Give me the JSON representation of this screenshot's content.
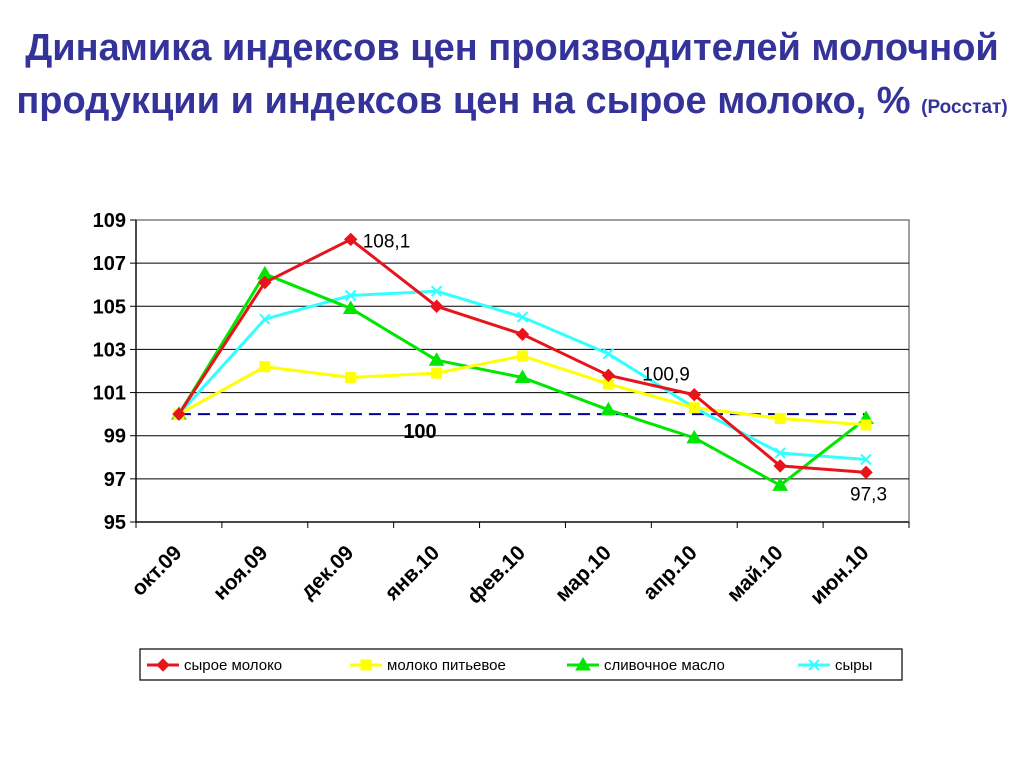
{
  "title": {
    "text": "Динамика индексов цен производителей молочной продукции и индексов цен на сырое молоко, %",
    "source": "(Росстат)"
  },
  "chart_data": {
    "type": "line",
    "categories": [
      "окт.09",
      "ноя.09",
      "дек.09",
      "янв.10",
      "фев.10",
      "мар.10",
      "апр.10",
      "май.10",
      "июн.10"
    ],
    "ylim": [
      95,
      109
    ],
    "yticks": [
      95,
      97,
      99,
      101,
      103,
      105,
      107,
      109
    ],
    "grid": true,
    "legend_position": "bottom",
    "series": [
      {
        "name": "сырое молоко",
        "color": "#e8141c",
        "marker": "diamond",
        "values": [
          100,
          106.1,
          108.1,
          105.0,
          103.7,
          101.8,
          100.9,
          97.6,
          97.3
        ]
      },
      {
        "name": "молоко питьевое",
        "color": "#ffff00",
        "marker": "square",
        "values": [
          100,
          102.2,
          101.7,
          101.9,
          102.7,
          101.4,
          100.3,
          99.8,
          99.5
        ]
      },
      {
        "name": "сливочное масло",
        "color": "#00e600",
        "marker": "triangle",
        "values": [
          100,
          106.5,
          104.9,
          102.5,
          101.7,
          100.2,
          98.9,
          96.7,
          99.8
        ]
      },
      {
        "name": "сыры",
        "color": "#33ffff",
        "marker": "x",
        "values": [
          100,
          104.4,
          105.5,
          105.7,
          104.5,
          102.8,
          100.3,
          98.2,
          97.9
        ]
      }
    ],
    "reference_line": {
      "value": 100,
      "label": "100",
      "color": "#000099",
      "style": "dashed"
    },
    "annotations": [
      {
        "series": 0,
        "index": 2,
        "text": "108,1"
      },
      {
        "series": 0,
        "index": 6,
        "text": "100,9"
      },
      {
        "series": 0,
        "index": 8,
        "text": "97,3"
      }
    ]
  }
}
